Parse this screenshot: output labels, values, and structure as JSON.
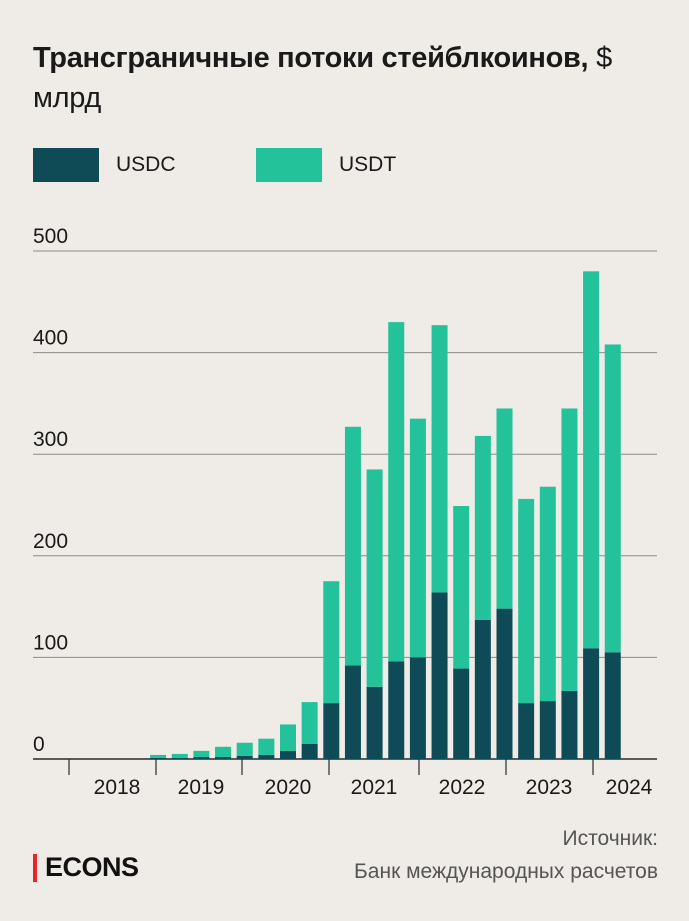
{
  "title": {
    "bold": "Трансграничные потоки стейблкоинов,",
    "unit": " $ млрд"
  },
  "legend": [
    {
      "label": "USDC",
      "color": "#0f4b57"
    },
    {
      "label": "USDT",
      "color": "#23c29a"
    }
  ],
  "source": {
    "line1": "Источник:",
    "line2": "Банк международных расчетов"
  },
  "logo": "ECONS",
  "chart_data": {
    "type": "bar",
    "stacked": true,
    "ylim": [
      0,
      500
    ],
    "yticks": [
      0,
      100,
      200,
      300,
      400,
      500
    ],
    "grid": true,
    "legend_position": "top-left",
    "year_labels": [
      "2018",
      "2019",
      "2020",
      "2021",
      "2022",
      "2023",
      "2024"
    ],
    "series": [
      {
        "name": "USDC",
        "color": "#0f4b57",
        "values": [
          0,
          0,
          0,
          0,
          1,
          1,
          2,
          2,
          3,
          4,
          8,
          15,
          55,
          92,
          71,
          96,
          100,
          164,
          89,
          137,
          148,
          55,
          57,
          67,
          109,
          105
        ]
      },
      {
        "name": "USDT",
        "color": "#23c29a",
        "values": [
          0,
          0,
          0,
          0,
          3,
          4,
          6,
          10,
          13,
          16,
          26,
          41,
          120,
          235,
          214,
          334,
          235,
          263,
          160,
          181,
          197,
          201,
          211,
          278,
          371,
          303
        ]
      }
    ]
  }
}
